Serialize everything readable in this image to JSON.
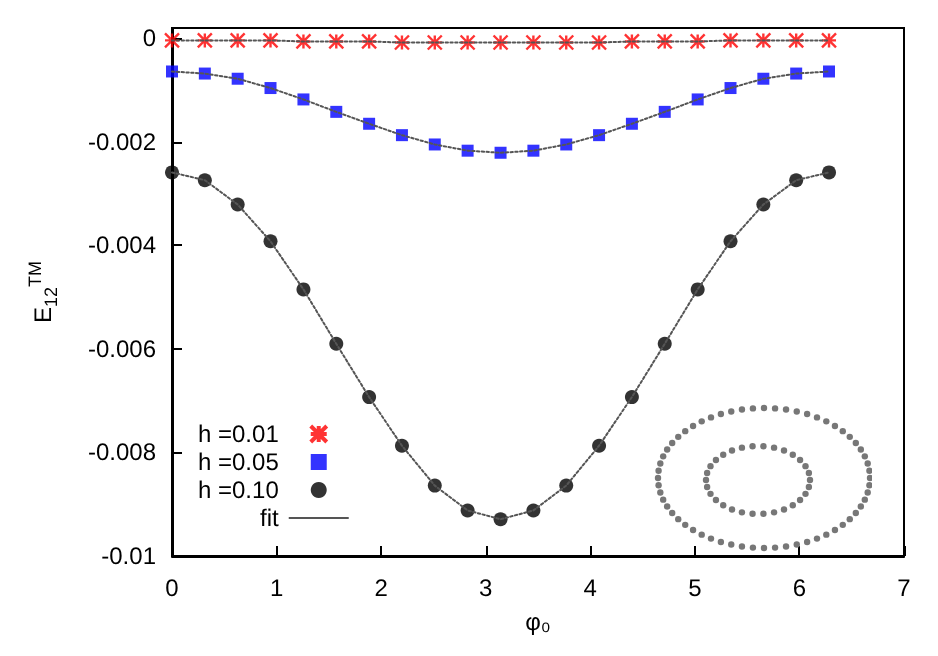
{
  "chart_data": {
    "type": "scatter",
    "xlabel": "φ₀",
    "ylabel": "E$_{12}$$^{TM}$",
    "x": [
      0,
      0.314,
      0.628,
      0.942,
      1.257,
      1.571,
      1.885,
      2.199,
      2.513,
      2.827,
      3.142,
      3.456,
      3.77,
      4.084,
      4.398,
      4.712,
      5.027,
      5.341,
      5.655,
      5.969,
      6.283
    ],
    "series": [
      {
        "name": "h =0.01",
        "color": "#ff0000",
        "marker": "cross",
        "values": [
          -4e-05,
          -4e-05,
          -4e-05,
          -4e-05,
          -6e-05,
          -6e-05,
          -6e-05,
          -8e-05,
          -8e-05,
          -8e-05,
          -8e-05,
          -8e-05,
          -8e-05,
          -8e-05,
          -6e-05,
          -6e-05,
          -6e-05,
          -4e-05,
          -4e-05,
          -4e-05,
          -4e-05
        ]
      },
      {
        "name": "h =0.05",
        "color": "#0000ff",
        "marker": "square",
        "values": [
          -0.00064,
          -0.00068,
          -0.00078,
          -0.00096,
          -0.00118,
          -0.00142,
          -0.00165,
          -0.00187,
          -0.00205,
          -0.00217,
          -0.00221,
          -0.00217,
          -0.00205,
          -0.00187,
          -0.00165,
          -0.00142,
          -0.00118,
          -0.00096,
          -0.00078,
          -0.00068,
          -0.00064
        ]
      },
      {
        "name": "h =0.10",
        "color": "#000000",
        "marker": "circle",
        "values": [
          -0.00259,
          -0.00274,
          -0.00321,
          -0.00392,
          -0.00485,
          -0.0059,
          -0.00693,
          -0.00787,
          -0.00864,
          -0.00912,
          -0.00929,
          -0.00912,
          -0.00864,
          -0.00787,
          -0.00693,
          -0.0059,
          -0.00485,
          -0.00392,
          -0.00321,
          -0.00274,
          -0.00259
        ]
      },
      {
        "name": "fit",
        "type": "line",
        "color": "#555555",
        "marker": "none",
        "line_style": "dotted",
        "values": [
          -4e-05,
          -4e-05,
          -4e-05,
          -4e-05,
          -6e-05,
          -6e-05,
          -6e-05,
          -8e-05,
          -8e-05,
          -8e-05,
          -8e-05,
          -8e-05,
          -8e-05,
          -8e-05,
          -6e-05,
          -6e-05,
          -6e-05,
          -4e-05,
          -4e-05,
          -4e-05,
          -4e-05
        ]
      },
      {
        "type": "line",
        "color": "#555555",
        "marker": "none",
        "line_style": "dotted",
        "values": [
          -0.00064,
          -0.00068,
          -0.00078,
          -0.00096,
          -0.00118,
          -0.00142,
          -0.00165,
          -0.00187,
          -0.00205,
          -0.00217,
          -0.00221,
          -0.00217,
          -0.00205,
          -0.00187,
          -0.00165,
          -0.00142,
          -0.00118,
          -0.00096,
          -0.00078,
          -0.00068,
          -0.00064
        ]
      },
      {
        "type": "line",
        "color": "#555555",
        "marker": "none",
        "line_style": "dotted",
        "values": [
          -0.00259,
          -0.00274,
          -0.00321,
          -0.00392,
          -0.00485,
          -0.0059,
          -0.00693,
          -0.00787,
          -0.00864,
          -0.00912,
          -0.00929,
          -0.00912,
          -0.00864,
          -0.00787,
          -0.00693,
          -0.0059,
          -0.00485,
          -0.00392,
          -0.00321,
          -0.00274,
          -0.00259
        ]
      }
    ],
    "xlim": [
      0,
      7
    ],
    "xticks": [
      0,
      1,
      2,
      3,
      4,
      5,
      6,
      7
    ],
    "ylim": [
      -0.01,
      0.0002
    ],
    "yticks": [
      0,
      -0.002,
      -0.004,
      -0.006,
      -0.008,
      -0.01
    ],
    "grid": false,
    "legend": "bottom left"
  }
}
